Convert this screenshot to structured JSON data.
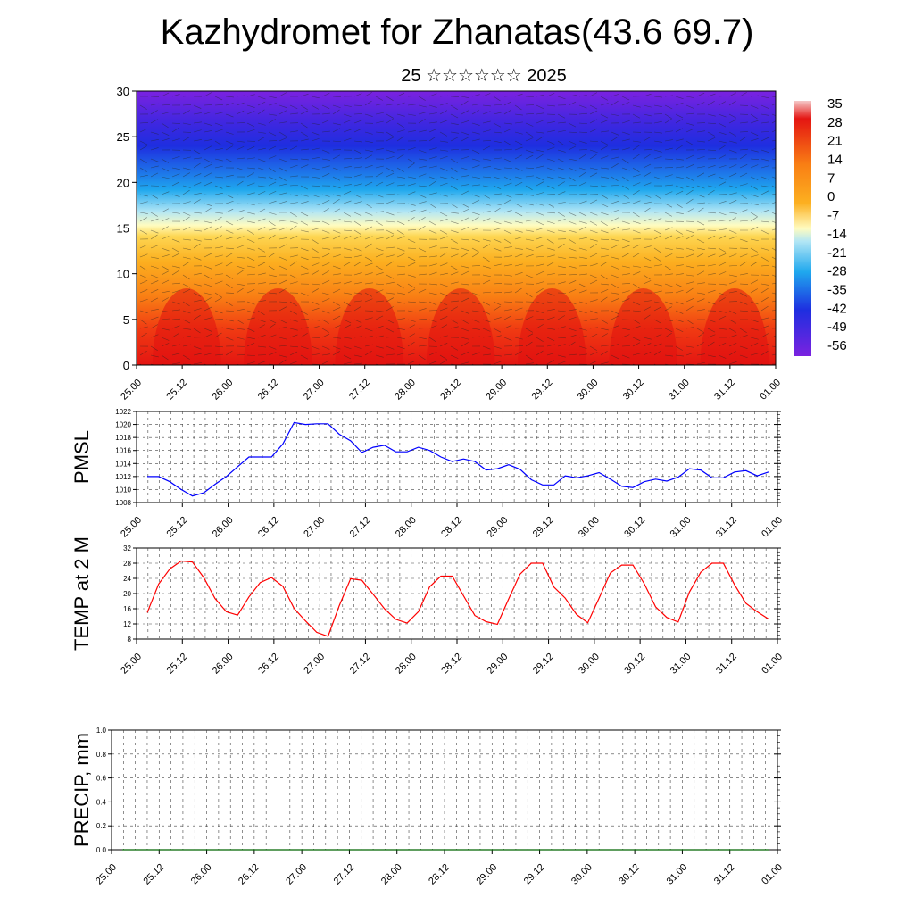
{
  "page": {
    "title": "Kazhydromet for Zhanatas(43.6 69.7)",
    "subtitle": "25 ☆☆☆☆☆☆ 2025"
  },
  "chart_data": [
    {
      "type": "heatmap",
      "name": "cross-section",
      "ylim": [
        0,
        30
      ],
      "yticks": [
        0,
        5,
        10,
        15,
        20,
        25,
        30
      ],
      "x_ticklabels": [
        "25.00",
        "25.12",
        "26.00",
        "26.12",
        "27.00",
        "27.12",
        "28.00",
        "28.12",
        "29.00",
        "29.12",
        "30.00",
        "30.12",
        "31.00",
        "31.12",
        "01.00"
      ],
      "colorbar_labels": [
        "35",
        "28",
        "21",
        "14",
        "7",
        "0",
        "-7",
        "-14",
        "-21",
        "-28",
        "-35",
        "-42",
        "-49",
        "-56"
      ],
      "colors": {
        "cold": "#7b22e0",
        "mid_cold": "#1fa8ee",
        "neutral": "#fffcc0",
        "warm": "#fca017",
        "hot": "#e41512"
      }
    },
    {
      "type": "line",
      "ylabel": "PMSL",
      "ylim": [
        1008,
        1022
      ],
      "yticks": [
        1008,
        1010,
        1012,
        1014,
        1016,
        1018,
        1020,
        1022
      ],
      "x_ticklabels": [
        "25.00",
        "25.12",
        "26.00",
        "26.12",
        "27.00",
        "27.12",
        "28.00",
        "28.12",
        "29.00",
        "29.12",
        "30.00",
        "30.12",
        "31.00",
        "31.12",
        "01.00"
      ],
      "line_color": "#0000ff",
      "values": [
        1012,
        1012,
        1011.2,
        1010,
        1009,
        1009.5,
        1010.8,
        1012,
        1013.5,
        1015,
        1015,
        1015,
        1017,
        1020.3,
        1020,
        1020.1,
        1020.1,
        1018.5,
        1017.5,
        1015.7,
        1016.5,
        1016.8,
        1015.8,
        1015.8,
        1016.5,
        1016,
        1015,
        1014.3,
        1014.7,
        1014.3,
        1013,
        1013.2,
        1013.8,
        1013.1,
        1011.5,
        1010.7,
        1010.7,
        1012.1,
        1011.8,
        1012.1,
        1012.6,
        1011.6,
        1010.5,
        1010.3,
        1011.2,
        1011.6,
        1011.3,
        1011.9,
        1013.2,
        1013,
        1011.8,
        1011.8,
        1012.7,
        1012.9,
        1012.1,
        1012.7
      ]
    },
    {
      "type": "line",
      "ylabel": "TEMP at 2 M",
      "ylim": [
        8,
        32
      ],
      "yticks": [
        8,
        12,
        16,
        20,
        24,
        28,
        32
      ],
      "x_ticklabels": [
        "25.00",
        "25.12",
        "26.00",
        "26.12",
        "27.00",
        "27.12",
        "28.00",
        "28.12",
        "29.00",
        "29.12",
        "30.00",
        "30.12",
        "31.00",
        "31.12",
        "01.00"
      ],
      "line_color": "#ff0000",
      "values": [
        15,
        22.5,
        26.5,
        28.6,
        28.3,
        24.2,
        18.7,
        15.2,
        14.3,
        19.1,
        22.9,
        24.2,
        21.9,
        16.1,
        12.8,
        9.8,
        8.7,
        16.8,
        23.9,
        23.5,
        19.8,
        16,
        13.2,
        12.2,
        15.2,
        21.8,
        24.6,
        24.6,
        19.4,
        14.2,
        12.6,
        11.9,
        18.6,
        25.1,
        28,
        28,
        21.7,
        18.8,
        14.5,
        12.3,
        18.8,
        25.4,
        27.5,
        27.5,
        22.6,
        16.5,
        13.7,
        12.5,
        20.4,
        25.6,
        28,
        28,
        22.3,
        17.4,
        15.2,
        13.3
      ]
    },
    {
      "type": "line",
      "ylabel": "PRECIP, mm",
      "ylim": [
        0,
        1
      ],
      "yticks": [
        0.0,
        0.2,
        0.4,
        0.6,
        0.8,
        1.0
      ],
      "ytick_labels": [
        "0.0",
        "0.2",
        "0.4",
        "0.6",
        "0.8",
        "1.0"
      ],
      "x_ticklabels": [
        "25.00",
        "25.12",
        "26.00",
        "26.12",
        "27.00",
        "27.12",
        "28.00",
        "28.12",
        "29.00",
        "29.12",
        "30.00",
        "30.12",
        "31.00",
        "31.12",
        "01.00"
      ],
      "line_color": "#006400",
      "values": [
        0,
        0,
        0,
        0,
        0,
        0,
        0,
        0,
        0,
        0,
        0,
        0,
        0,
        0,
        0,
        0,
        0,
        0,
        0,
        0,
        0,
        0,
        0,
        0,
        0,
        0,
        0,
        0,
        0,
        0,
        0,
        0,
        0,
        0,
        0,
        0,
        0,
        0,
        0,
        0,
        0,
        0,
        0,
        0,
        0,
        0,
        0,
        0,
        0,
        0,
        0,
        0,
        0,
        0,
        0,
        0
      ]
    }
  ]
}
